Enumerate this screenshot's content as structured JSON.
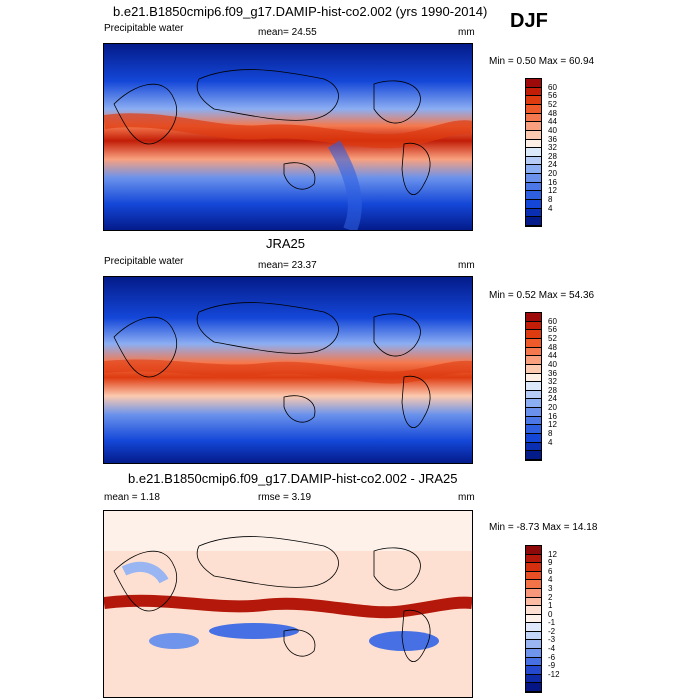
{
  "season": "DJF",
  "panels": [
    {
      "id": "model",
      "title": "b.e21.B1850cmip6.f09_g17.DAMIP-hist-co2.002 (yrs 1990-2014)",
      "left_label": "Precipitable water",
      "center_label": "mean=  24.55",
      "units": "mm",
      "minmax": "Min =   0.50 Max =  60.94",
      "colorbar_ticks": [
        "60",
        "56",
        "52",
        "48",
        "44",
        "40",
        "36",
        "32",
        "28",
        "24",
        "20",
        "16",
        "12",
        "8",
        "4"
      ],
      "colorbar_colors": [
        "#9e0a0a",
        "#c21d07",
        "#de3b10",
        "#ee5a2a",
        "#f5794e",
        "#f9a17f",
        "#fccab0",
        "#fdefe6",
        "#dbe9fb",
        "#b6ccf7",
        "#8caef2",
        "#6a92ec",
        "#4b78e6",
        "#2e5fe0",
        "#1447d8",
        "#0b2fb2",
        "#041b8a"
      ]
    },
    {
      "id": "obs",
      "title": "JRA25",
      "left_label": "Precipitable water",
      "center_label": "mean=  23.37",
      "units": "mm",
      "minmax": "Min =   0.52 Max =  54.36",
      "colorbar_ticks": [
        "60",
        "56",
        "52",
        "48",
        "44",
        "40",
        "36",
        "32",
        "28",
        "24",
        "20",
        "16",
        "12",
        "8",
        "4"
      ],
      "colorbar_colors": [
        "#9e0a0a",
        "#c21d07",
        "#de3b10",
        "#ee5a2a",
        "#f5794e",
        "#f9a17f",
        "#fccab0",
        "#fdefe6",
        "#dbe9fb",
        "#b6ccf7",
        "#8caef2",
        "#6a92ec",
        "#4b78e6",
        "#2e5fe0",
        "#1447d8",
        "#0b2fb2",
        "#041b8a"
      ]
    },
    {
      "id": "diff",
      "title": "b.e21.B1850cmip6.f09_g17.DAMIP-hist-co2.002 - JRA25",
      "left_label": "mean =   1.18",
      "center_label": "rmse =   3.19",
      "units": "mm",
      "minmax": "Min =  -8.73 Max =  14.18",
      "colorbar_ticks": [
        "12",
        "9",
        "6",
        "4",
        "3",
        "2",
        "1",
        "0",
        "-1",
        "-2",
        "-3",
        "-4",
        "-6",
        "-9",
        "-12"
      ],
      "colorbar_colors": [
        "#8e0a0a",
        "#b4180a",
        "#d43010",
        "#e94f24",
        "#f27347",
        "#f7987a",
        "#fbbca3",
        "#fde0d1",
        "#fdf1ea",
        "#e0e9fb",
        "#c2d4f8",
        "#99b6f2",
        "#6f94eb",
        "#4670e3",
        "#2449cf",
        "#0f2aa8",
        "#051585"
      ]
    }
  ]
}
